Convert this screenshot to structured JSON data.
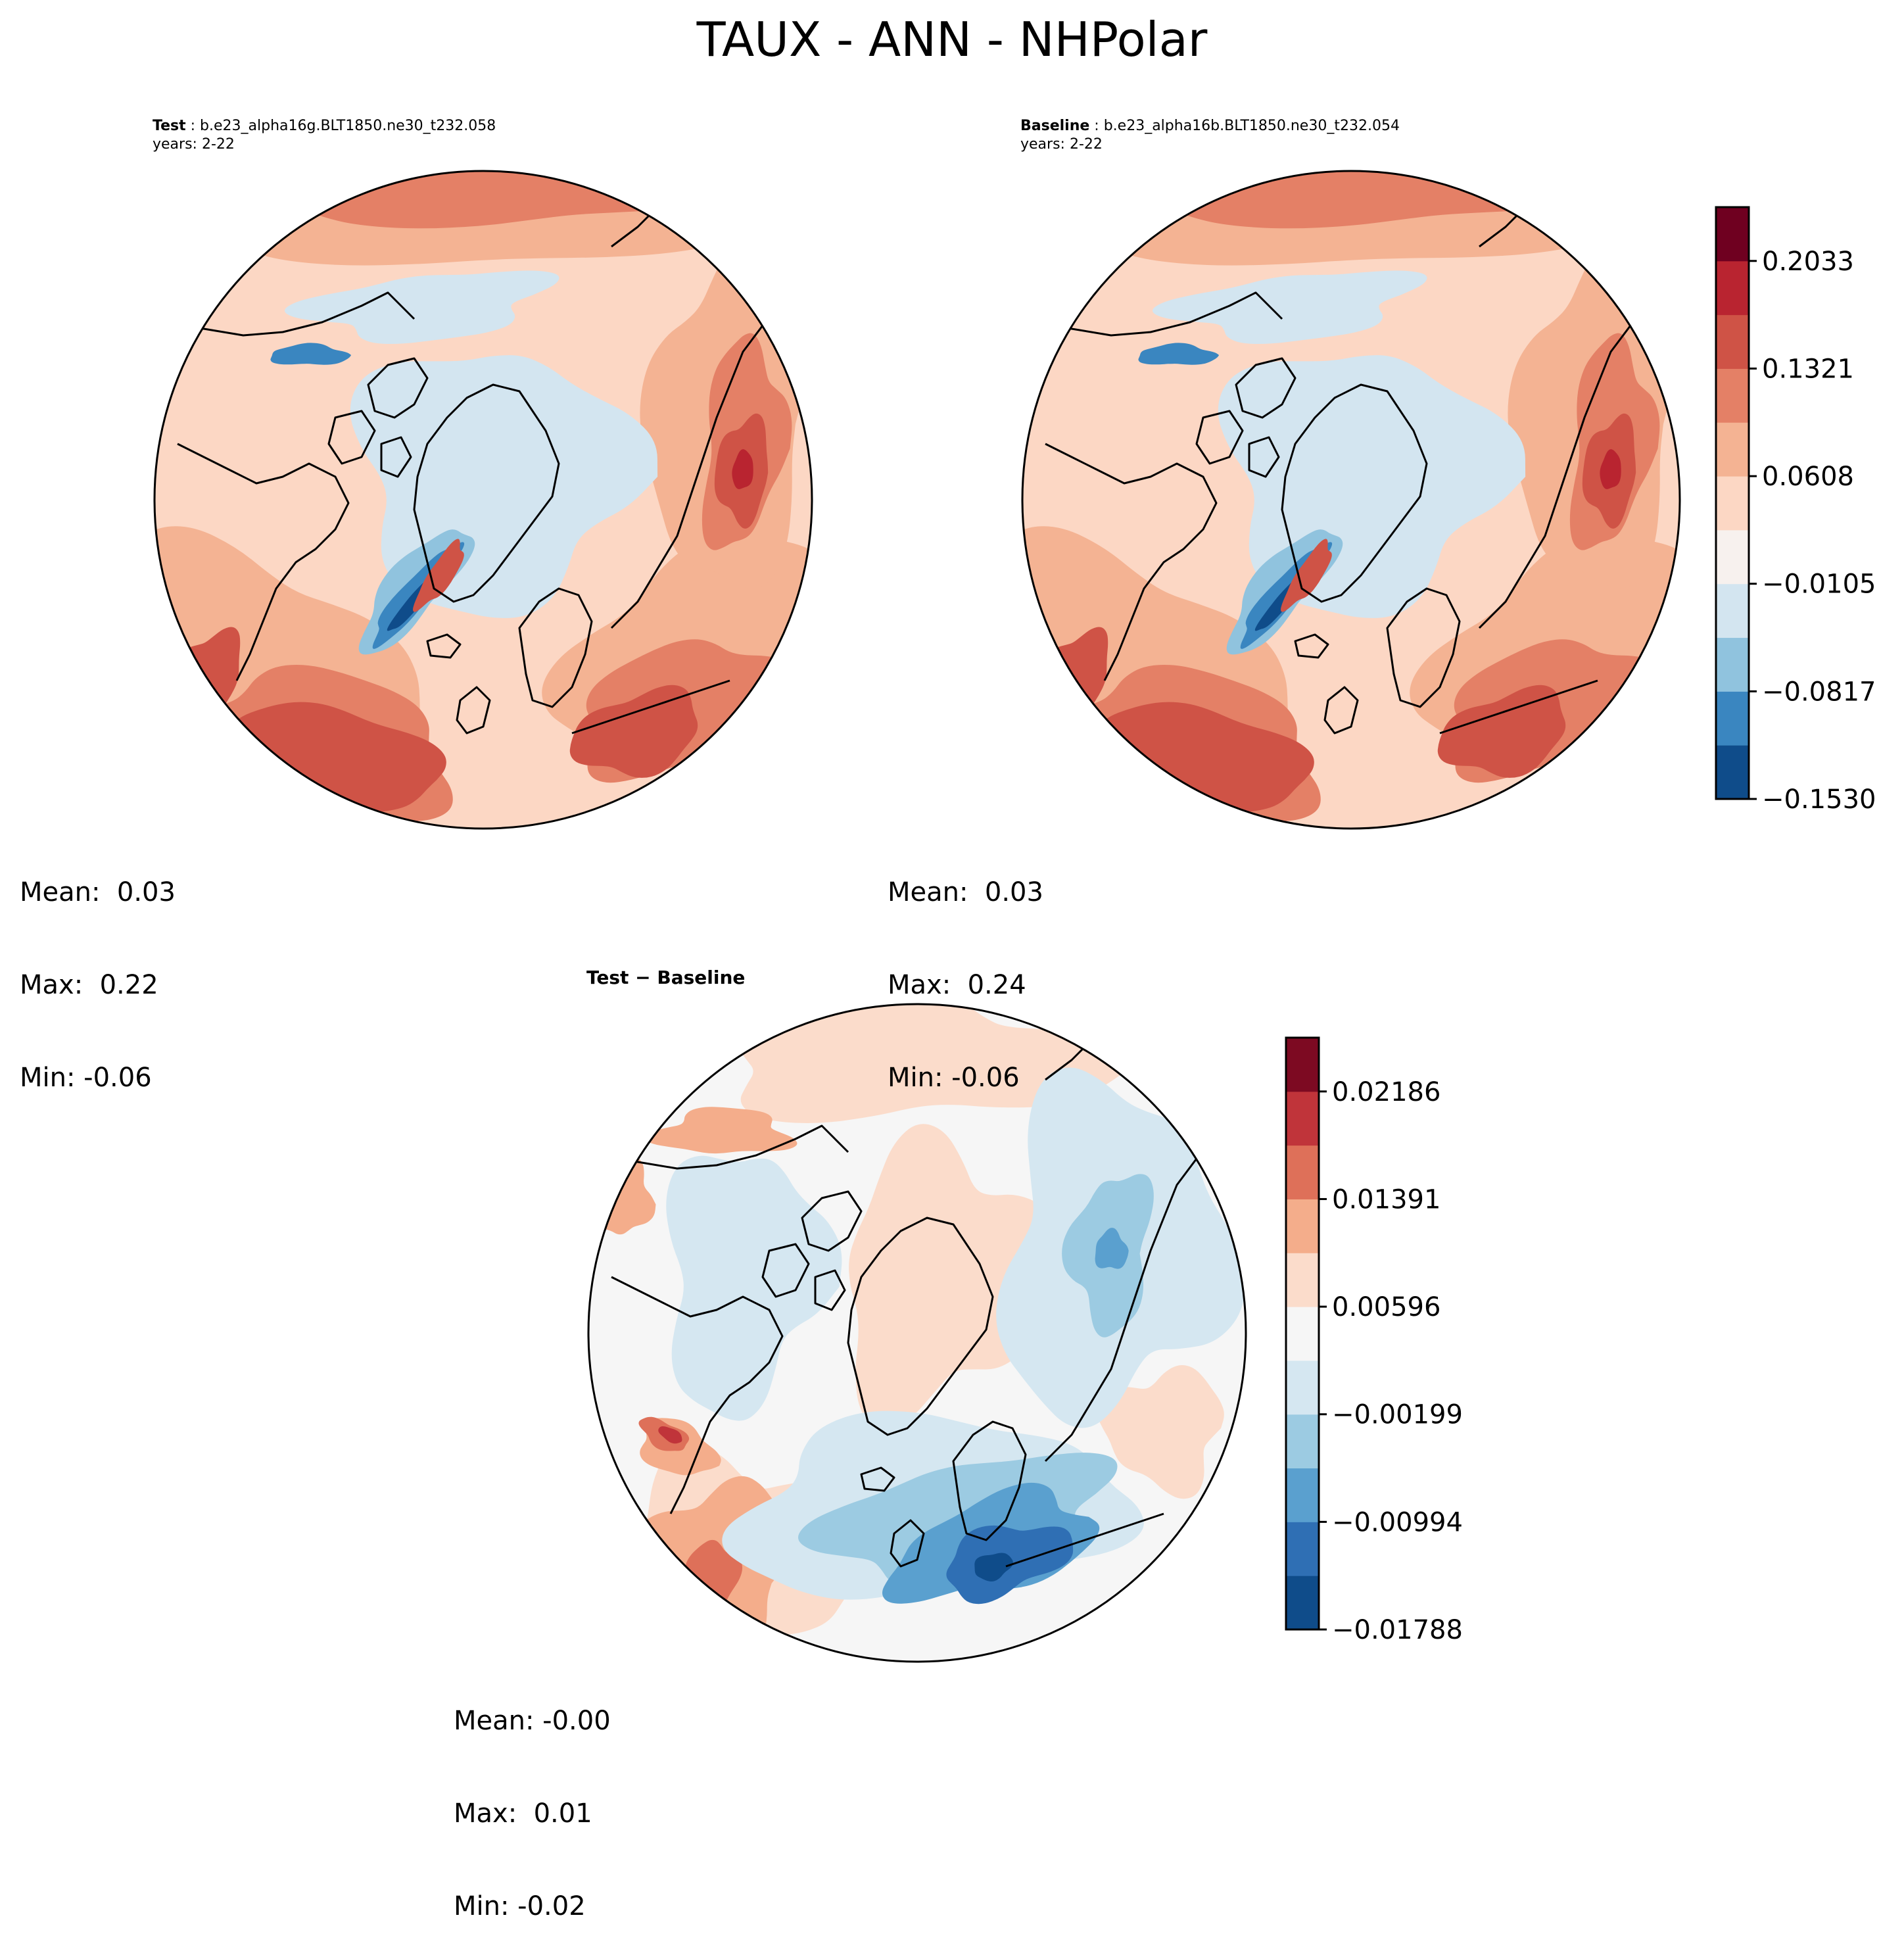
{
  "title": "TAUX - ANN - NHPolar",
  "colors": {
    "abs": [
      "#0f4c8a",
      "#3a86c0",
      "#90c3de",
      "#d3e5f0",
      "#f7f1ee",
      "#fcd7c4",
      "#f4b393",
      "#e48066",
      "#cf5346",
      "#b92430",
      "#6f0020"
    ],
    "diff": [
      "#0f4c8a",
      "#2f6fb4",
      "#5aa0cf",
      "#9ccbe2",
      "#d5e7f1",
      "#f6f6f6",
      "#fbdccb",
      "#f4ad8b",
      "#de7059",
      "#c0343a",
      "#7d0a22"
    ],
    "coast": "#000000"
  },
  "panels": [
    {
      "label": "Test",
      "case": "b.e23_alpha16g.BLT1850.ne30_t232.058",
      "years": "years: 2-22",
      "mean": "Mean:  0.03",
      "max": "Max:  0.22",
      "min": "Min: -0.06"
    },
    {
      "label": "Baseline",
      "case": "b.e23_alpha16b.BLT1850.ne30_t232.054",
      "years": "years: 2-22",
      "mean": "Mean:  0.03",
      "max": "Max:  0.24",
      "min": "Min: -0.06"
    }
  ],
  "diff_panel": {
    "title": "Test − Baseline",
    "mean": "Mean: -0.00",
    "max": "Max:  0.01",
    "min": "Min: -0.02"
  },
  "chart_data": [
    {
      "type": "heatmap",
      "title": "Test : b.e23_alpha16g.BLT1850.ne30_t232.058",
      "projection": "north polar stereographic",
      "colorbar_ticks": [
        "0.2033",
        "0.1321",
        "0.0608",
        "−0.0105",
        "−0.0817",
        "−0.1530"
      ],
      "stats": {
        "mean": 0.03,
        "max": 0.22,
        "min": -0.06
      }
    },
    {
      "type": "heatmap",
      "title": "Baseline : b.e23_alpha16b.BLT1850.ne30_t232.054",
      "projection": "north polar stereographic",
      "colorbar_ticks": [
        "0.2033",
        "0.1321",
        "0.0608",
        "−0.0105",
        "−0.0817",
        "−0.1530"
      ],
      "stats": {
        "mean": 0.03,
        "max": 0.24,
        "min": -0.06
      }
    },
    {
      "type": "heatmap",
      "title": "Test − Baseline",
      "projection": "north polar stereographic",
      "colorbar_ticks": [
        "0.02186",
        "0.01391",
        "0.00596",
        "−0.00199",
        "−0.00994",
        "−0.01788"
      ],
      "stats": {
        "mean": -0.0,
        "max": 0.01,
        "min": -0.02
      }
    }
  ]
}
